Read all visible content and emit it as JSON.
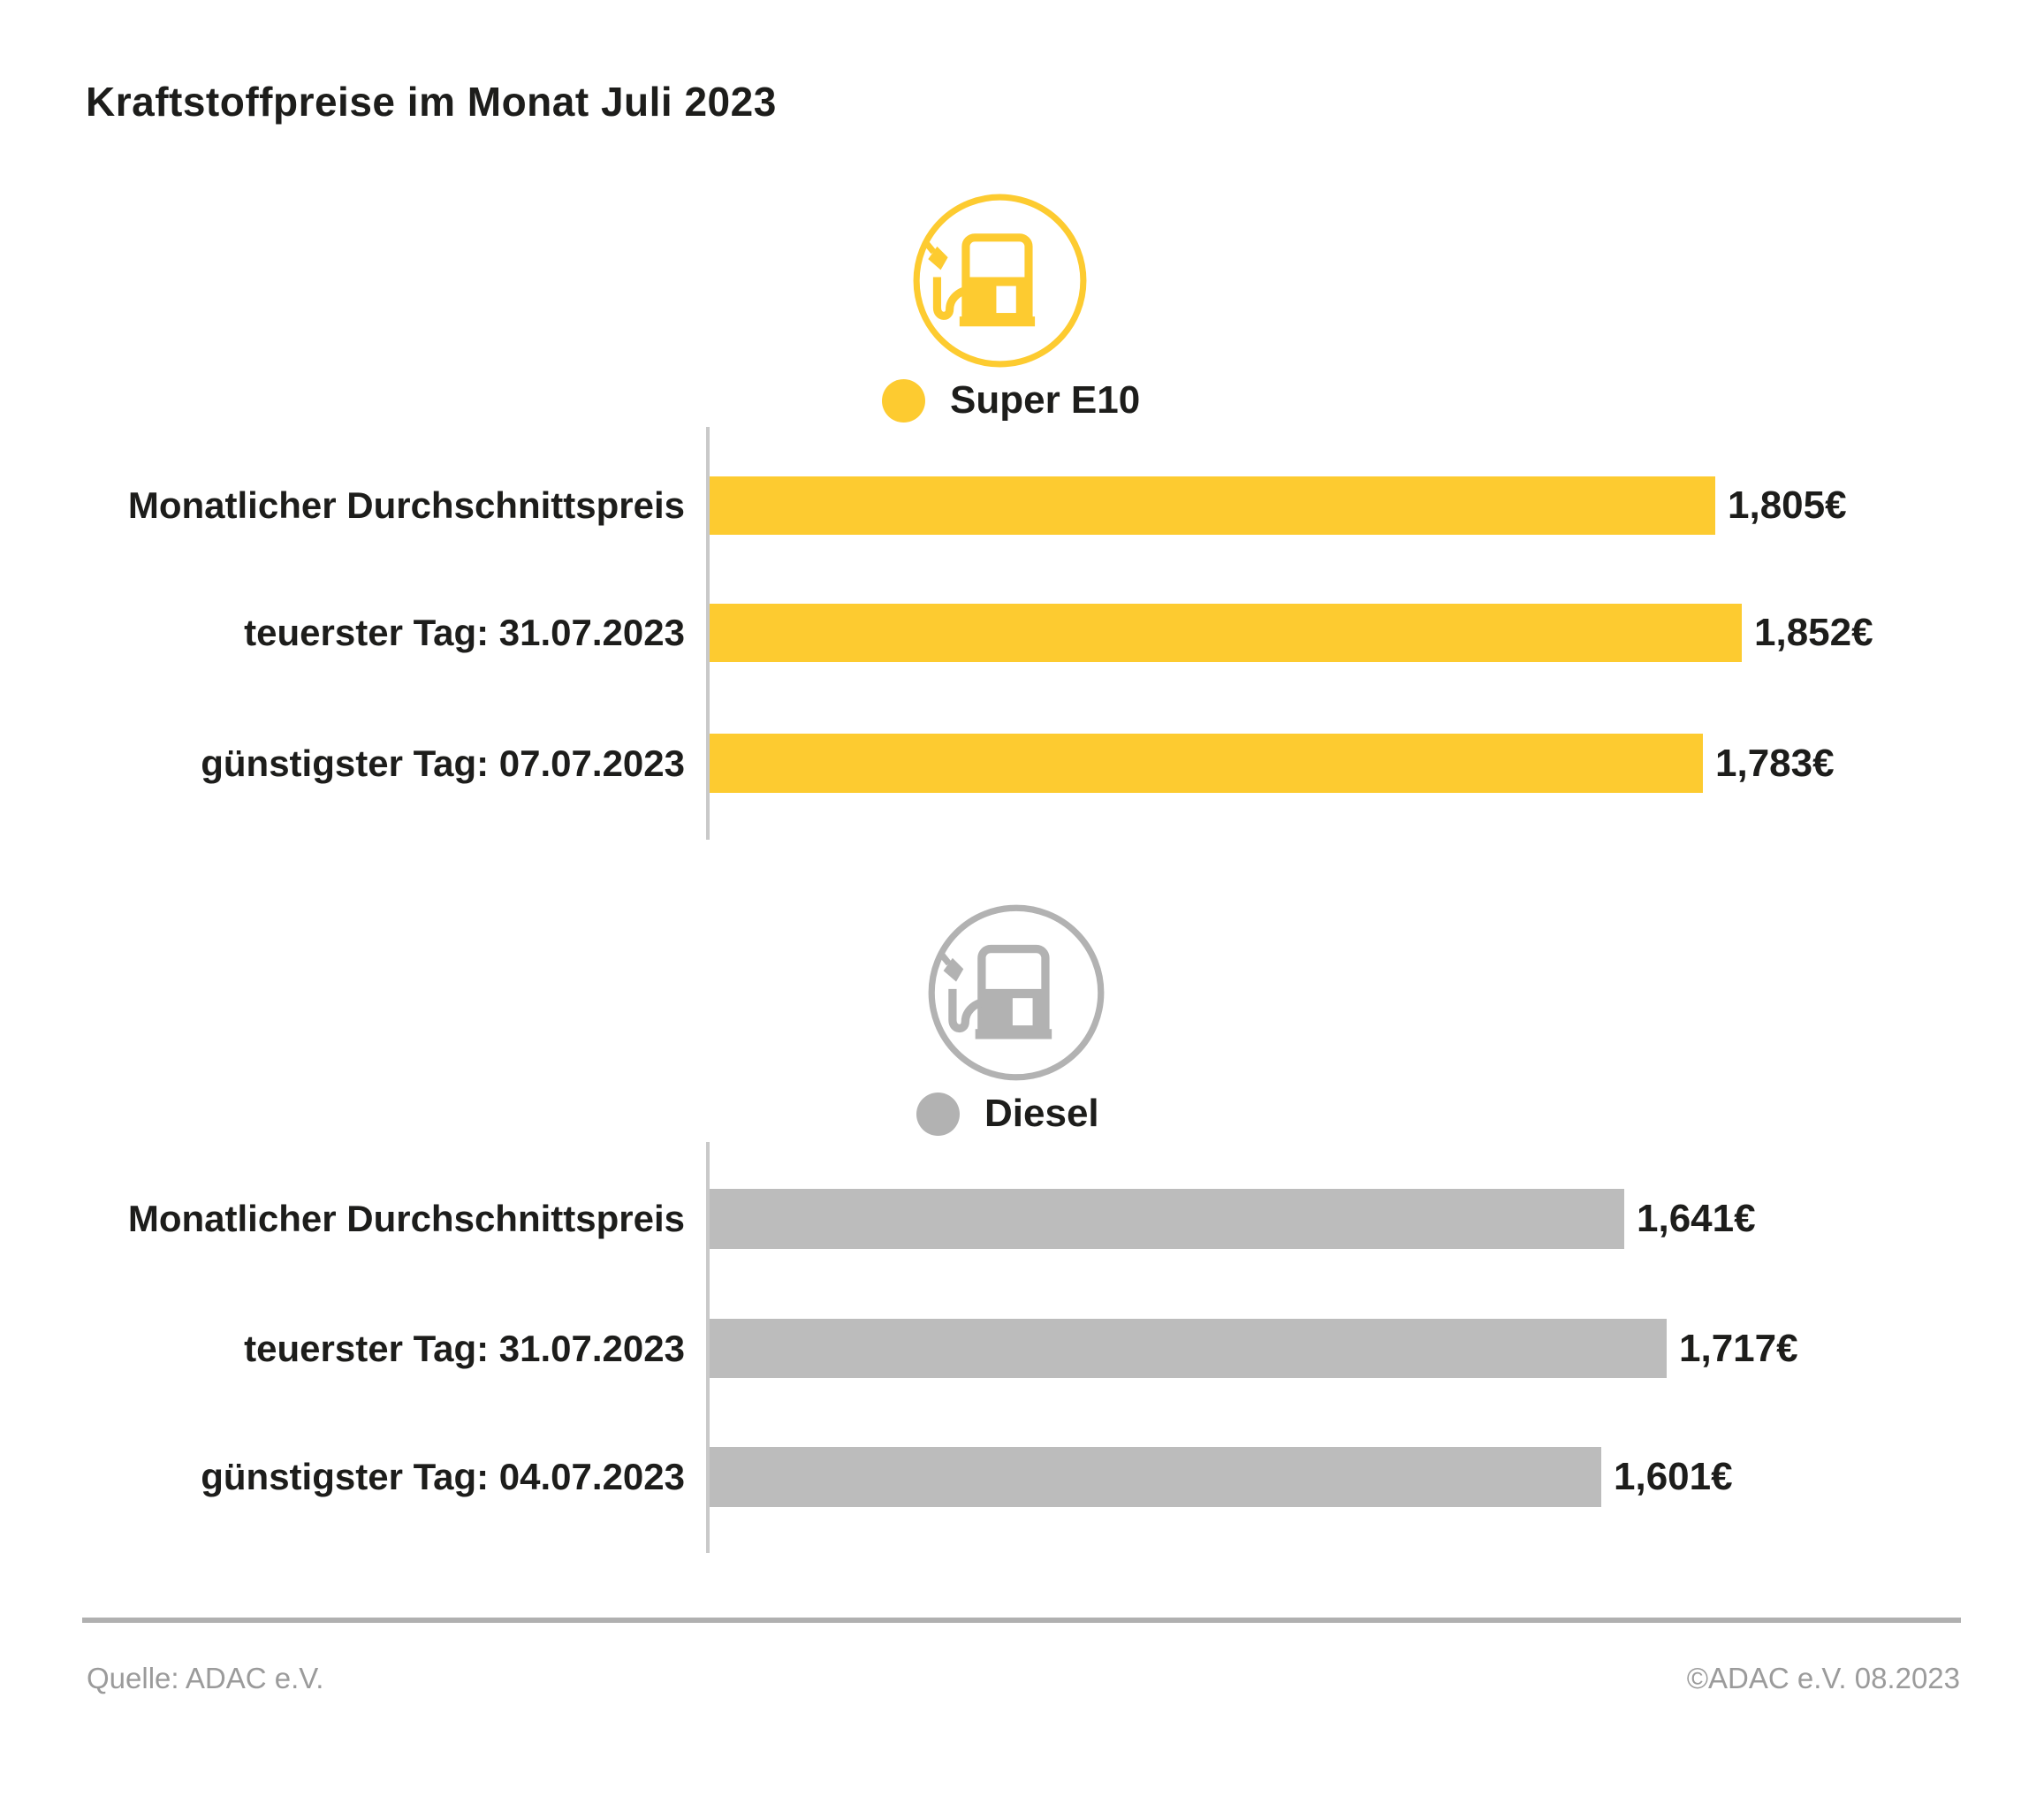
{
  "title": "Kraftstoffpreise im Monat Juli 2023",
  "colors": {
    "super_e10": "#FDCB30",
    "diesel": "#BCBCBC",
    "diesel_icon": "#B2B2B2",
    "text": "#1D1D1B",
    "axis": "#C9C9C9",
    "divider": "#B0B0B0",
    "footer_text": "#9B9B9B"
  },
  "chart_data": [
    {
      "type": "bar",
      "orientation": "horizontal",
      "title": "Super E10",
      "legend": "Super E10",
      "icon": "fuel-pump-icon",
      "color": "#FDCB30",
      "categories": [
        "Monatlicher Durchschnittspreis",
        "teuerster Tag: 31.07.2023",
        "günstigster Tag: 07.07.2023"
      ],
      "values": [
        1.805,
        1.852,
        1.783
      ],
      "value_labels": [
        "1,805€",
        "1,852€",
        "1,783€"
      ],
      "xlim": [
        0,
        1.852
      ],
      "gridlines": false,
      "legend_position": "top"
    },
    {
      "type": "bar",
      "orientation": "horizontal",
      "title": "Diesel",
      "legend": "Diesel",
      "icon": "fuel-pump-icon",
      "color": "#BCBCBC",
      "categories": [
        "Monatlicher Durchschnittspreis",
        "teuerster Tag: 31.07.2023",
        "günstigster Tag: 04.07.2023"
      ],
      "values": [
        1.641,
        1.717,
        1.601
      ],
      "value_labels": [
        "1,641€",
        "1,717€",
        "1,601€"
      ],
      "xlim": [
        0,
        1.852
      ],
      "gridlines": false,
      "legend_position": "top"
    }
  ],
  "footer": {
    "source": "Quelle: ADAC e.V.",
    "copyright": "©ADAC e.V. 08.2023"
  }
}
